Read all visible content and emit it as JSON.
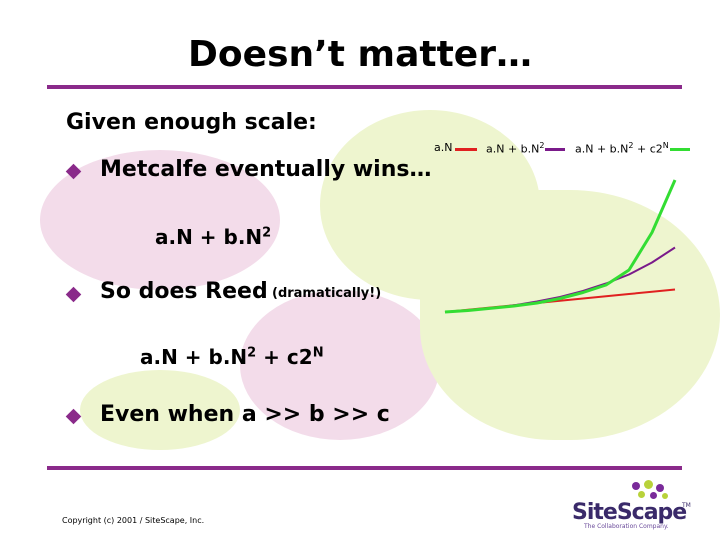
{
  "slide": {
    "title": "Doesn’t matter…",
    "intro": "Given enough scale:",
    "bullets": [
      {
        "text": "Metcalfe eventually wins…"
      },
      {
        "text": "So does Reed",
        "aside": "(dramatically!)"
      },
      {
        "text": "Even when a >> b >> c"
      }
    ],
    "formula1": {
      "base": "a.N + b.N",
      "exp": "2"
    },
    "formula2": {
      "base": "a.N + b.N",
      "exp1": "2",
      "mid": " + c2",
      "exp2": "N"
    },
    "copyright": "Copyright (c) 2001 / SiteScape, Inc.",
    "logo": {
      "name": "SiteScape",
      "tagline": "The Collaboration Company.",
      "tm": "TM"
    },
    "colors": {
      "accent": "#8a2a8a",
      "blob_pink": "#f3dcea",
      "blob_green": "#eef5cf"
    }
  },
  "chart_data": {
    "type": "line",
    "x": [
      0,
      0.1,
      0.2,
      0.3,
      0.4,
      0.5,
      0.6,
      0.7,
      0.8,
      0.9,
      1.0
    ],
    "series": [
      {
        "name": "a.N",
        "color": "#e02020",
        "values": [
          0.02,
          0.035,
          0.05,
          0.065,
          0.08,
          0.095,
          0.11,
          0.125,
          0.14,
          0.155,
          0.17
        ]
      },
      {
        "name": "a.N + b.N2",
        "color": "#7a1a8a",
        "values": [
          0.02,
          0.03,
          0.045,
          0.065,
          0.09,
          0.12,
          0.16,
          0.21,
          0.27,
          0.35,
          0.45
        ]
      },
      {
        "name": "a.N + b.N2 + c2N",
        "color": "#33dd33",
        "values": [
          0.02,
          0.03,
          0.045,
          0.06,
          0.08,
          0.11,
          0.15,
          0.2,
          0.3,
          0.55,
          0.9
        ]
      }
    ],
    "legend_position": "top",
    "grid": false,
    "ylim": [
      0,
      1
    ]
  }
}
